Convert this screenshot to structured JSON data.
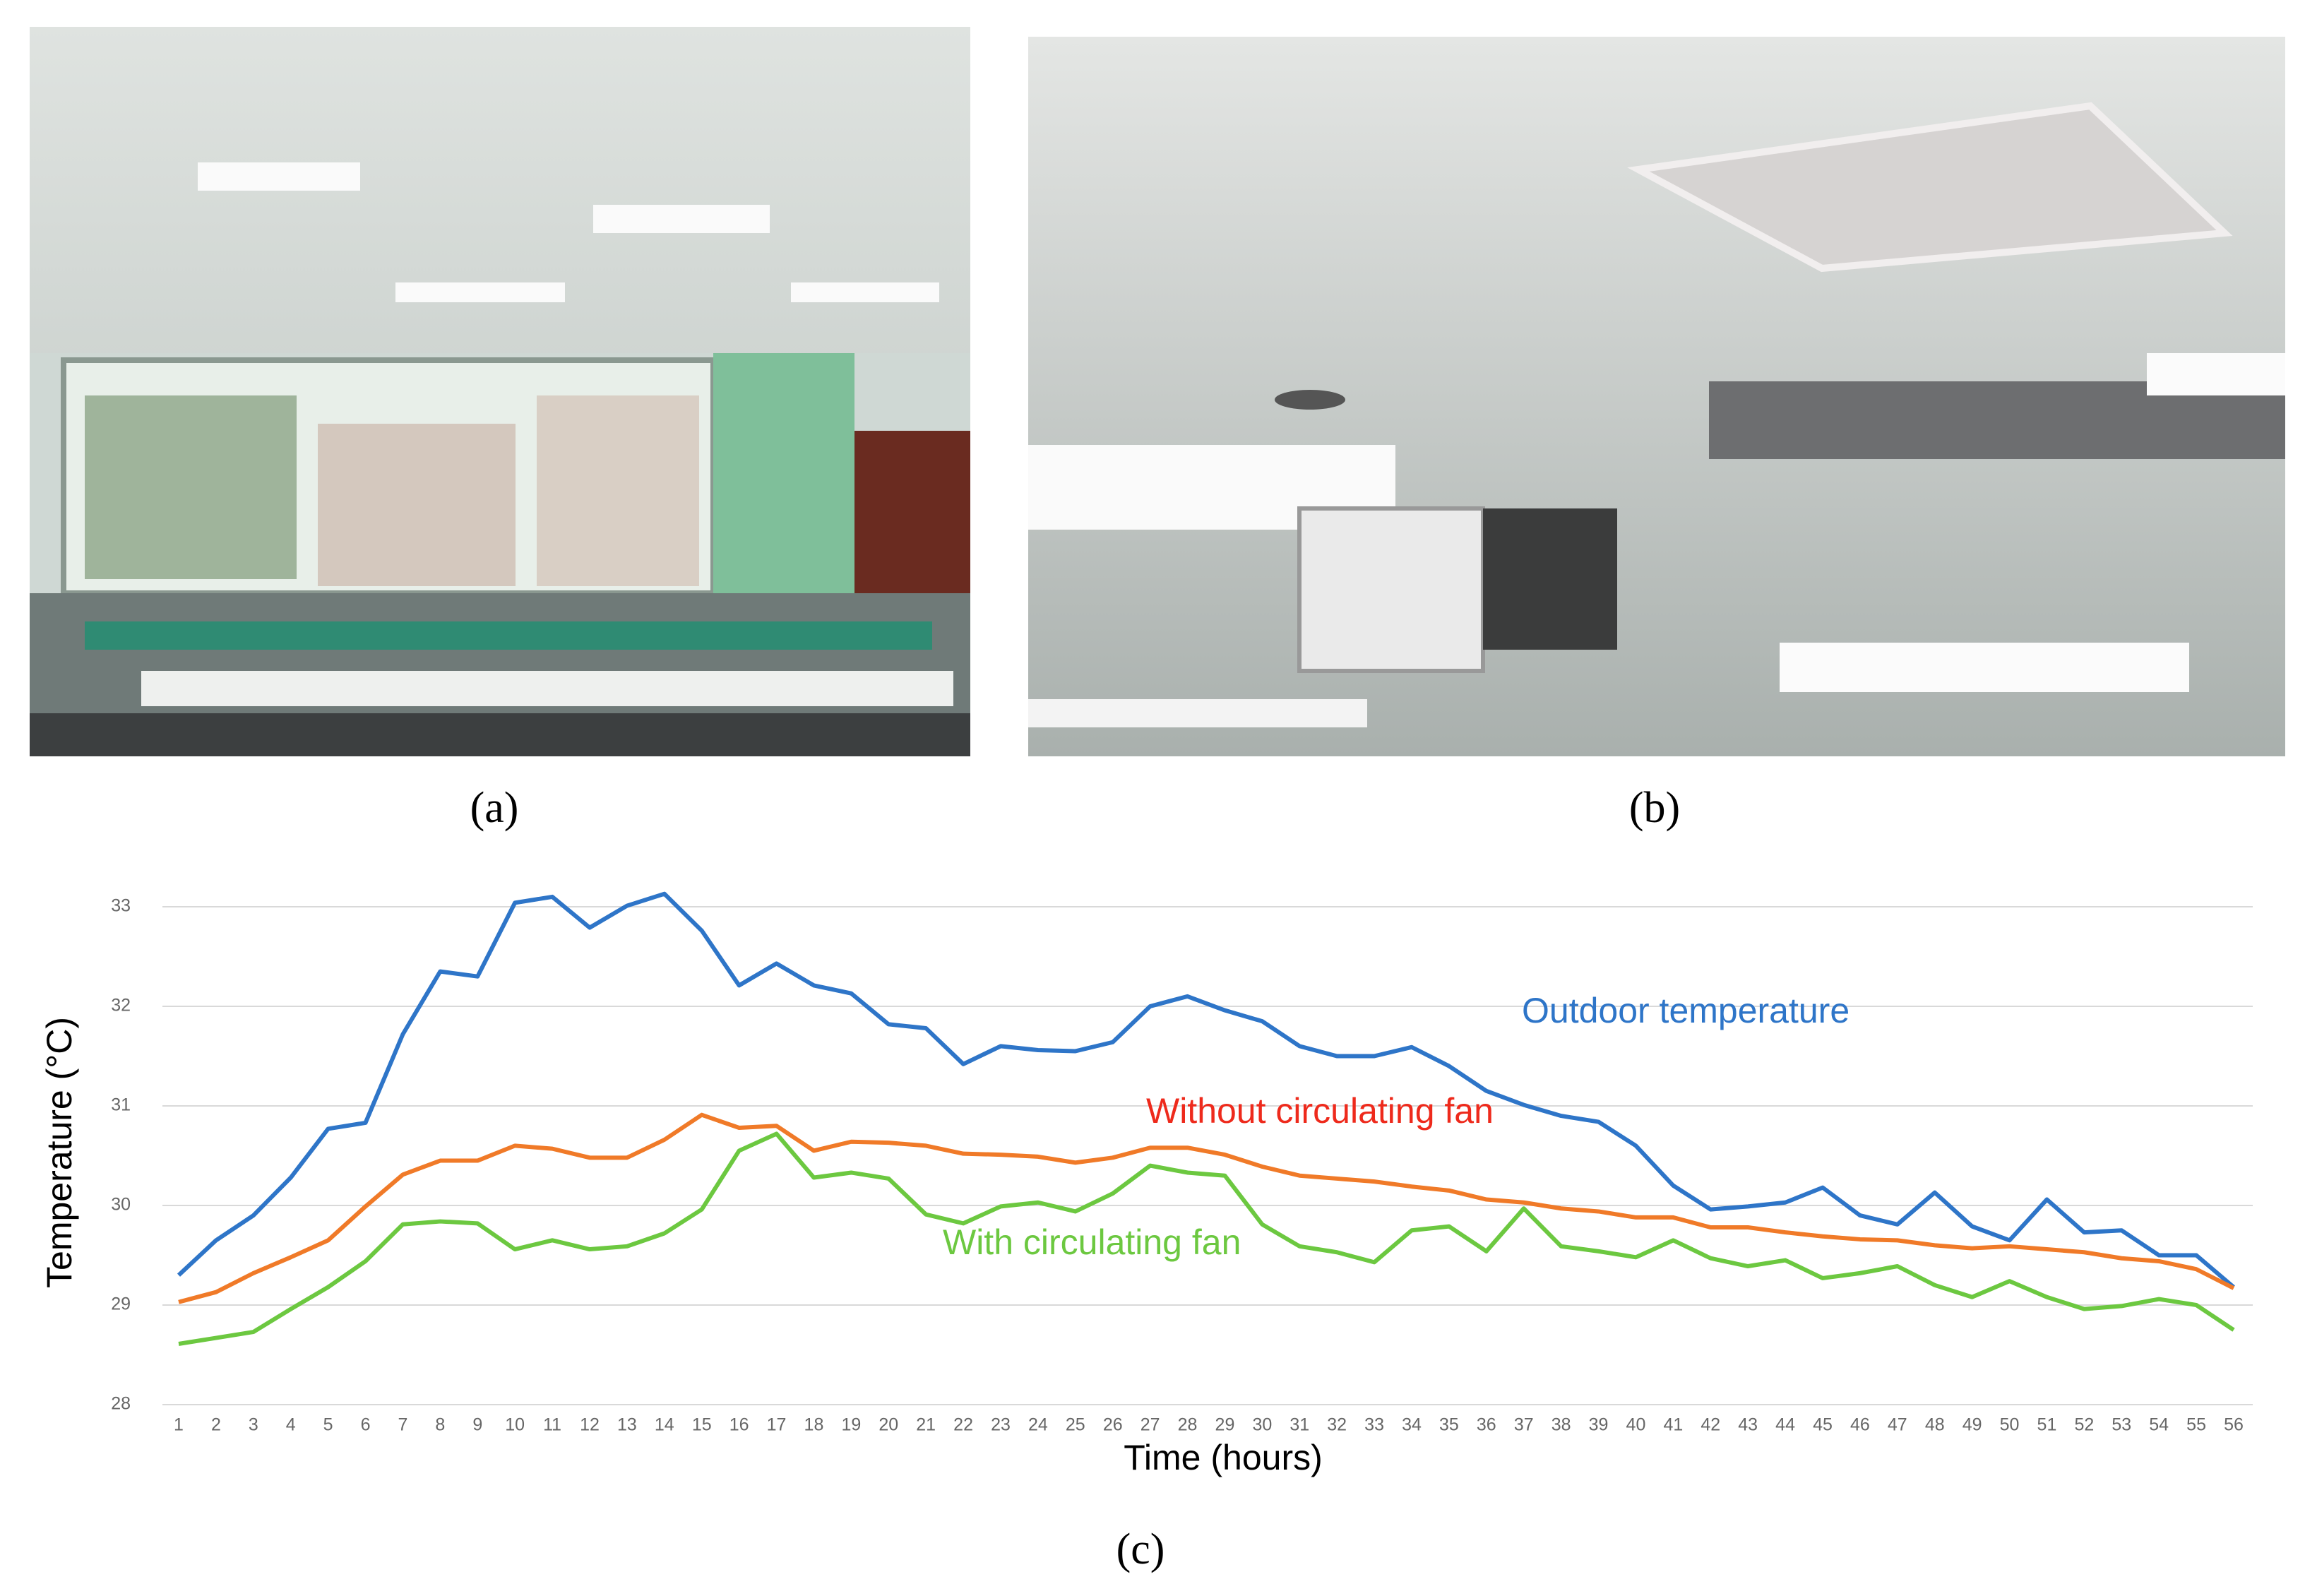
{
  "panels": {
    "a": "(a)",
    "b": "(b)",
    "c": "(c)"
  },
  "chart_data": {
    "type": "line",
    "x_label": "Time (hours)",
    "y_label": "Temperature (°C)",
    "categories": [
      "1",
      "2",
      "3",
      "4",
      "5",
      "6",
      "7",
      "8",
      "9",
      "10",
      "11",
      "12",
      "13",
      "14",
      "15",
      "16",
      "17",
      "18",
      "19",
      "20",
      "21",
      "22",
      "23",
      "24",
      "25",
      "26",
      "27",
      "28",
      "29",
      "30",
      "31",
      "32",
      "33",
      "34",
      "35",
      "36",
      "37",
      "38",
      "39",
      "40",
      "41",
      "42",
      "43",
      "44",
      "45",
      "46",
      "47",
      "48",
      "49",
      "50",
      "51",
      "52",
      "53",
      "54",
      "55",
      "56"
    ],
    "ylim": [
      28,
      33
    ],
    "yticks": [
      28,
      29,
      30,
      31,
      32,
      33
    ],
    "grid": true,
    "series": [
      {
        "name": "Outdoor temperature",
        "color": "#2e75c8",
        "values": [
          29.3,
          29.65,
          29.9,
          30.28,
          30.77,
          30.83,
          31.72,
          32.35,
          32.3,
          33.04,
          33.1,
          32.79,
          33.01,
          33.13,
          32.76,
          32.21,
          32.43,
          32.21,
          32.13,
          31.82,
          31.78,
          31.42,
          31.6,
          31.56,
          31.55,
          31.64,
          32.0,
          32.1,
          31.96,
          31.85,
          31.6,
          31.5,
          31.5,
          31.59,
          31.4,
          31.15,
          31.01,
          30.9,
          30.84,
          30.6,
          30.2,
          29.96,
          29.99,
          30.03,
          30.18,
          29.9,
          29.81,
          30.13,
          29.79,
          29.65,
          30.06,
          29.73,
          29.75,
          29.5,
          29.5,
          29.18
        ]
      },
      {
        "name": "Without circulating fan",
        "color": "#f07a28",
        "label_color": "#ee2a1c",
        "values": [
          29.03,
          29.13,
          29.32,
          29.48,
          29.65,
          29.99,
          30.31,
          30.45,
          30.45,
          30.6,
          30.57,
          30.48,
          30.48,
          30.66,
          30.91,
          30.78,
          30.8,
          30.55,
          30.64,
          30.63,
          30.6,
          30.52,
          30.51,
          30.49,
          30.43,
          30.48,
          30.58,
          30.58,
          30.51,
          30.39,
          30.3,
          30.27,
          30.24,
          30.19,
          30.15,
          30.06,
          30.03,
          29.97,
          29.94,
          29.88,
          29.88,
          29.78,
          29.78,
          29.73,
          29.69,
          29.66,
          29.65,
          29.6,
          29.57,
          29.59,
          29.56,
          29.53,
          29.47,
          29.44,
          29.36,
          29.17
        ]
      },
      {
        "name": "With circulating fan",
        "color": "#6cc840",
        "values": [
          28.61,
          28.67,
          28.73,
          28.96,
          29.18,
          29.44,
          29.81,
          29.84,
          29.82,
          29.56,
          29.65,
          29.56,
          29.59,
          29.72,
          29.96,
          30.55,
          30.72,
          30.28,
          30.33,
          30.27,
          29.91,
          29.82,
          29.99,
          30.03,
          29.94,
          30.12,
          30.4,
          30.33,
          30.3,
          29.81,
          29.59,
          29.53,
          29.43,
          29.75,
          29.79,
          29.54,
          29.97,
          29.59,
          29.54,
          29.48,
          29.65,
          29.47,
          29.39,
          29.45,
          29.27,
          29.32,
          29.39,
          29.2,
          29.08,
          29.24,
          29.08,
          28.96,
          28.99,
          29.06,
          29.0,
          28.75
        ]
      }
    ]
  }
}
